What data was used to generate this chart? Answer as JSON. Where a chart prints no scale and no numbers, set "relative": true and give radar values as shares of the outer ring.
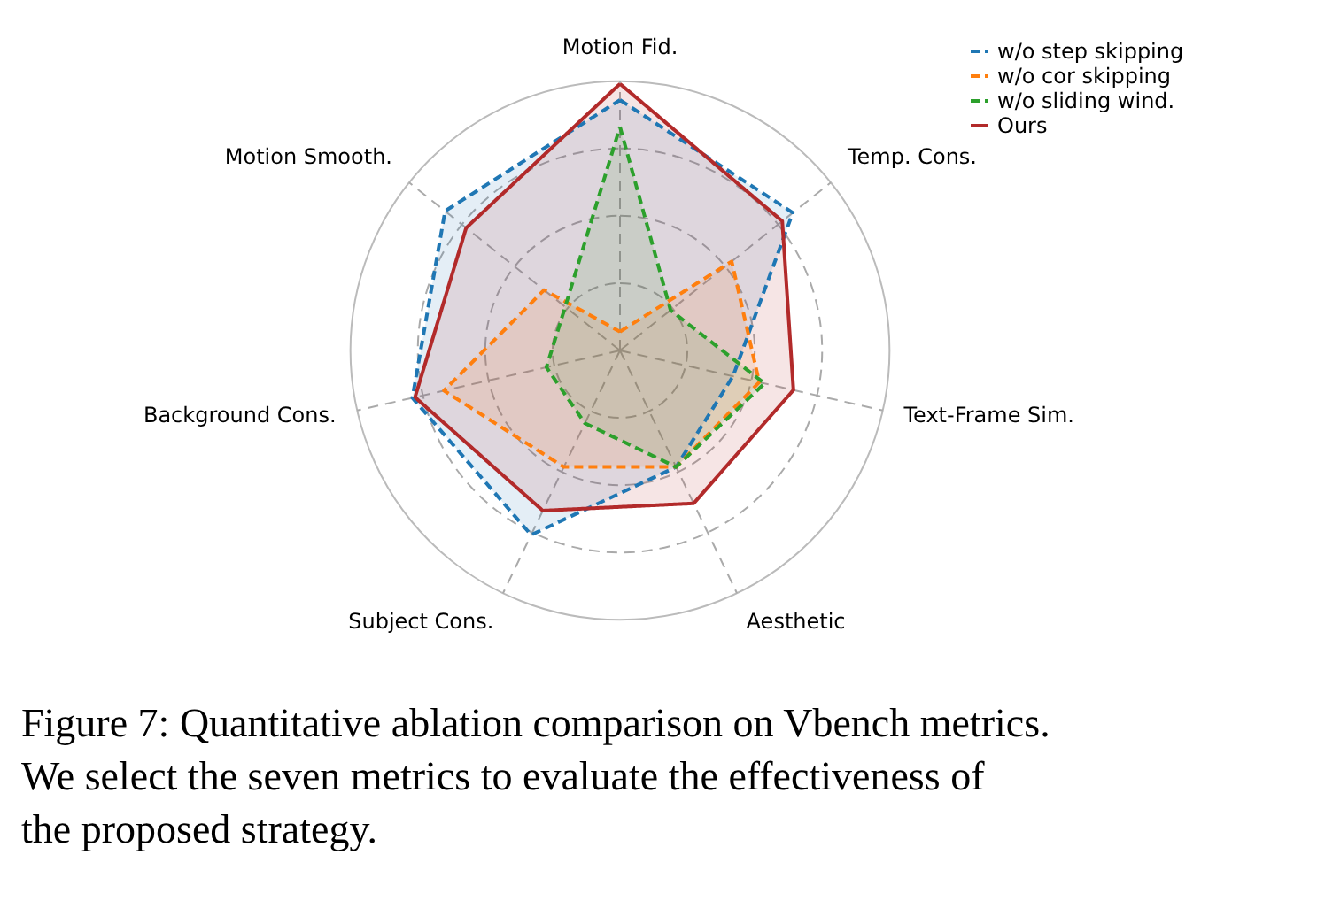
{
  "chart_data": {
    "type": "radar",
    "relative": true,
    "grid": true,
    "legend": "top right",
    "categories": [
      "Motion Fid.",
      "Temp. Cons.",
      "Text-Frame Sim.",
      "Aesthetic",
      "Subject Cons.",
      "Background Cons.",
      "Motion Smooth."
    ],
    "series": [
      {
        "name": "w/o step skipping",
        "color": "#1f77b4",
        "line_style": "dashed",
        "values": [
          0.93,
          0.82,
          0.43,
          0.48,
          0.76,
          0.79,
          0.83
        ]
      },
      {
        "name": "w/o cor skipping",
        "color": "#ff7f0e",
        "line_style": "dashed",
        "values": [
          0.07,
          0.53,
          0.53,
          0.48,
          0.48,
          0.67,
          0.36
        ]
      },
      {
        "name": "w/o sliding wind.",
        "color": "#2ca02c",
        "line_style": "dashed",
        "values": [
          0.83,
          0.24,
          0.55,
          0.48,
          0.3,
          0.28,
          0.26
        ]
      },
      {
        "name": "Ours",
        "color": "#b22a2a",
        "line_style": "solid",
        "values": [
          0.99,
          0.77,
          0.66,
          0.63,
          0.66,
          0.78,
          0.73
        ]
      }
    ],
    "annotations": [
      "Figure 7: Quantitative ablation comparison on Vbench metrics. We select the seven metrics to evaluate the effectiveness of the proposed strategy."
    ]
  }
}
